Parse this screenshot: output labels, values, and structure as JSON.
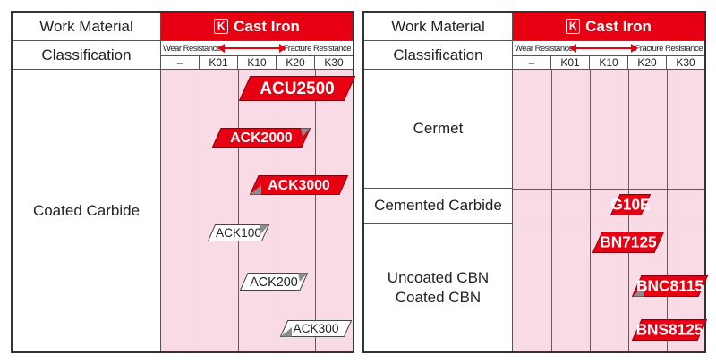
{
  "left": {
    "work_material_label": "Work Material",
    "classification_label": "Classification",
    "material": {
      "code": "K",
      "name": "Cast Iron"
    },
    "wear_label": "Wear Resistance",
    "fracture_label": "Fracture Resistance",
    "grades": [
      "–",
      "K01",
      "K10",
      "K20",
      "K30"
    ],
    "rows": [
      {
        "label": "Coated Carbide"
      }
    ],
    "badges": [
      {
        "name": "ACU2500",
        "style": "red",
        "mark": ""
      },
      {
        "name": "ACK2000",
        "style": "red",
        "mark": "C"
      },
      {
        "name": "ACK3000",
        "style": "red",
        "mark": "P"
      },
      {
        "name": "ACK100",
        "style": "white",
        "mark": "C"
      },
      {
        "name": "ACK200",
        "style": "white",
        "mark": "C"
      },
      {
        "name": "ACK300",
        "style": "white",
        "mark": "P"
      }
    ]
  },
  "right": {
    "work_material_label": "Work Material",
    "classification_label": "Classification",
    "material": {
      "code": "K",
      "name": "Cast Iron"
    },
    "wear_label": "Wear Resistance",
    "fracture_label": "Fracture Resistance",
    "grades": [
      "–",
      "K01",
      "K10",
      "K20",
      "K30"
    ],
    "rows": [
      {
        "label": "Cermet"
      },
      {
        "label": "Cemented Carbide"
      },
      {
        "label": "Uncoated CBN\nCoated CBN"
      }
    ],
    "badges": [
      {
        "name": "G10E",
        "style": "red",
        "mark": ""
      },
      {
        "name": "BN7125",
        "style": "red",
        "mark": ""
      },
      {
        "name": "BNC8115",
        "style": "red",
        "mark": "P"
      },
      {
        "name": "BNS8125",
        "style": "red",
        "mark": ""
      }
    ]
  },
  "colors": {
    "red": "#e60012",
    "pink": "#f8dbe5",
    "mark": "#8c8c8c"
  }
}
